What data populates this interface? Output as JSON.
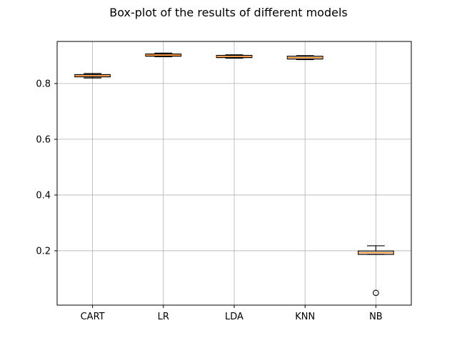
{
  "chart_data": {
    "type": "boxplot",
    "title": "Box-plot of the results of different models",
    "xlabel": "",
    "ylabel": "",
    "categories": [
      "CART",
      "LR",
      "LDA",
      "KNN",
      "NB"
    ],
    "boxes": [
      {
        "label": "CART",
        "whisker_low": 0.82,
        "q1": 0.824,
        "median": 0.828,
        "q3": 0.832,
        "whisker_high": 0.836,
        "outliers": []
      },
      {
        "label": "LR",
        "whisker_low": 0.896,
        "q1": 0.898,
        "median": 0.902,
        "q3": 0.906,
        "whisker_high": 0.909,
        "outliers": []
      },
      {
        "label": "LDA",
        "whisker_low": 0.891,
        "q1": 0.893,
        "median": 0.897,
        "q3": 0.901,
        "whisker_high": 0.903,
        "outliers": []
      },
      {
        "label": "KNN",
        "whisker_low": 0.886,
        "q1": 0.888,
        "median": 0.893,
        "q3": 0.898,
        "whisker_high": 0.9,
        "outliers": []
      },
      {
        "label": "NB",
        "whisker_low": 0.187,
        "q1": 0.187,
        "median": 0.193,
        "q3": 0.199,
        "whisker_high": 0.218,
        "outliers": [
          0.049
        ]
      }
    ],
    "yticks": [
      0.2,
      0.4,
      0.6,
      0.8
    ],
    "ytick_labels": [
      "0.2",
      "0.4",
      "0.6",
      "0.8"
    ],
    "ylim": [
      0.005,
      0.951
    ],
    "grid": true,
    "colors": {
      "median": "#ff7f0e",
      "box": "#000000",
      "grid": "#b0b0b0"
    }
  }
}
